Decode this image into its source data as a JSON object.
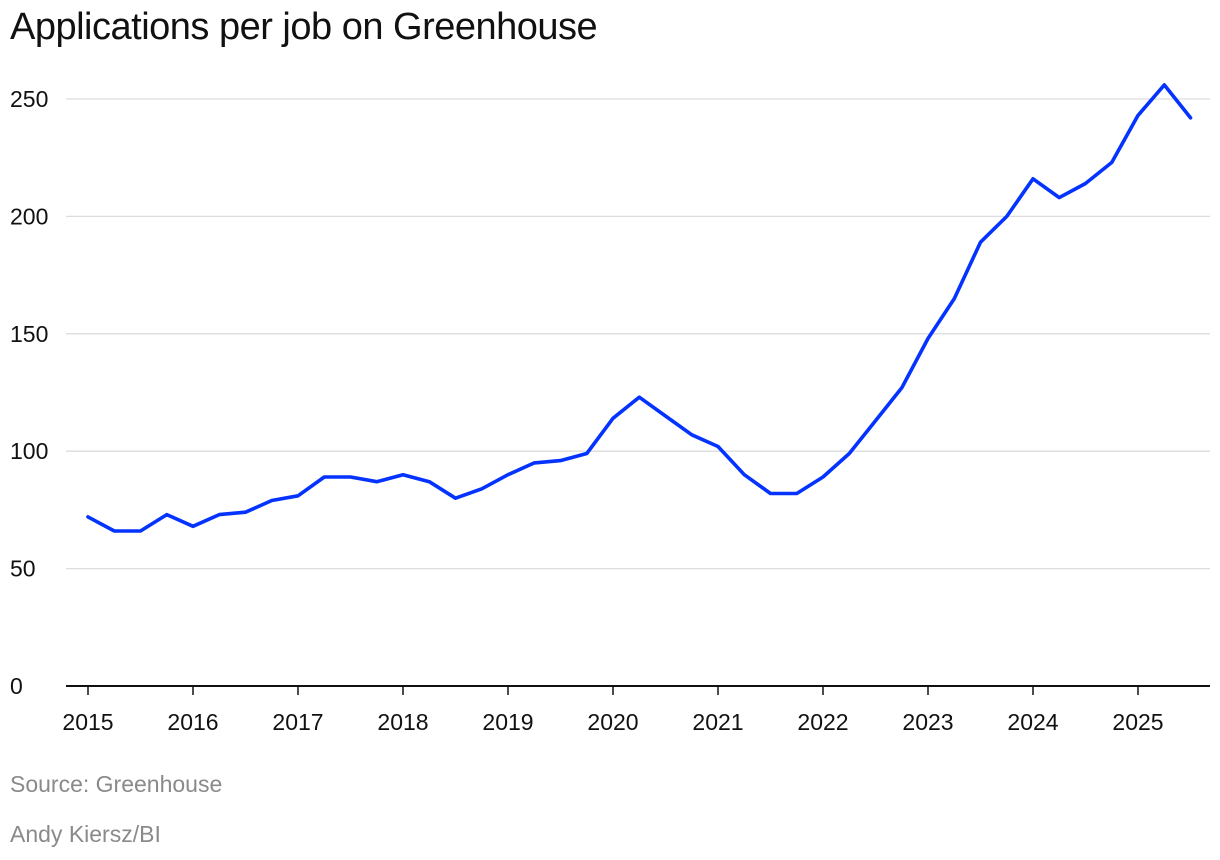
{
  "chart_data": {
    "type": "line",
    "title": "Applications per job on Greenhouse",
    "source": "Source: Greenhouse",
    "credit": "Andy Kiersz/BI",
    "xlabel": "",
    "ylabel": "",
    "ylim": [
      0,
      250
    ],
    "xlim": [
      2015,
      2025.5
    ],
    "yticks": [
      0,
      50,
      100,
      150,
      200,
      250
    ],
    "xticks": [
      2015,
      2016,
      2017,
      2018,
      2019,
      2020,
      2021,
      2022,
      2023,
      2024,
      2025
    ],
    "grid": true,
    "color": "#0433ff",
    "series": [
      {
        "name": "Applications per job",
        "x": [
          2015,
          2015.25,
          2015.5,
          2015.75,
          2016,
          2016.25,
          2016.5,
          2016.75,
          2017,
          2017.25,
          2017.5,
          2017.75,
          2018,
          2018.25,
          2018.5,
          2018.75,
          2019,
          2019.25,
          2019.5,
          2019.75,
          2020,
          2020.25,
          2020.5,
          2020.75,
          2021,
          2021.25,
          2021.5,
          2021.75,
          2022,
          2022.25,
          2022.5,
          2022.75,
          2023,
          2023.25,
          2023.5,
          2023.75,
          2024,
          2024.25,
          2024.5,
          2024.75,
          2025,
          2025.25,
          2025.5
        ],
        "values": [
          72,
          66,
          66,
          73,
          68,
          73,
          74,
          79,
          81,
          89,
          89,
          87,
          90,
          87,
          80,
          84,
          90,
          95,
          96,
          99,
          114,
          123,
          115,
          107,
          102,
          90,
          82,
          82,
          89,
          99,
          113,
          127,
          148,
          165,
          189,
          200,
          216,
          208,
          214,
          223,
          243,
          256,
          242
        ]
      }
    ]
  }
}
